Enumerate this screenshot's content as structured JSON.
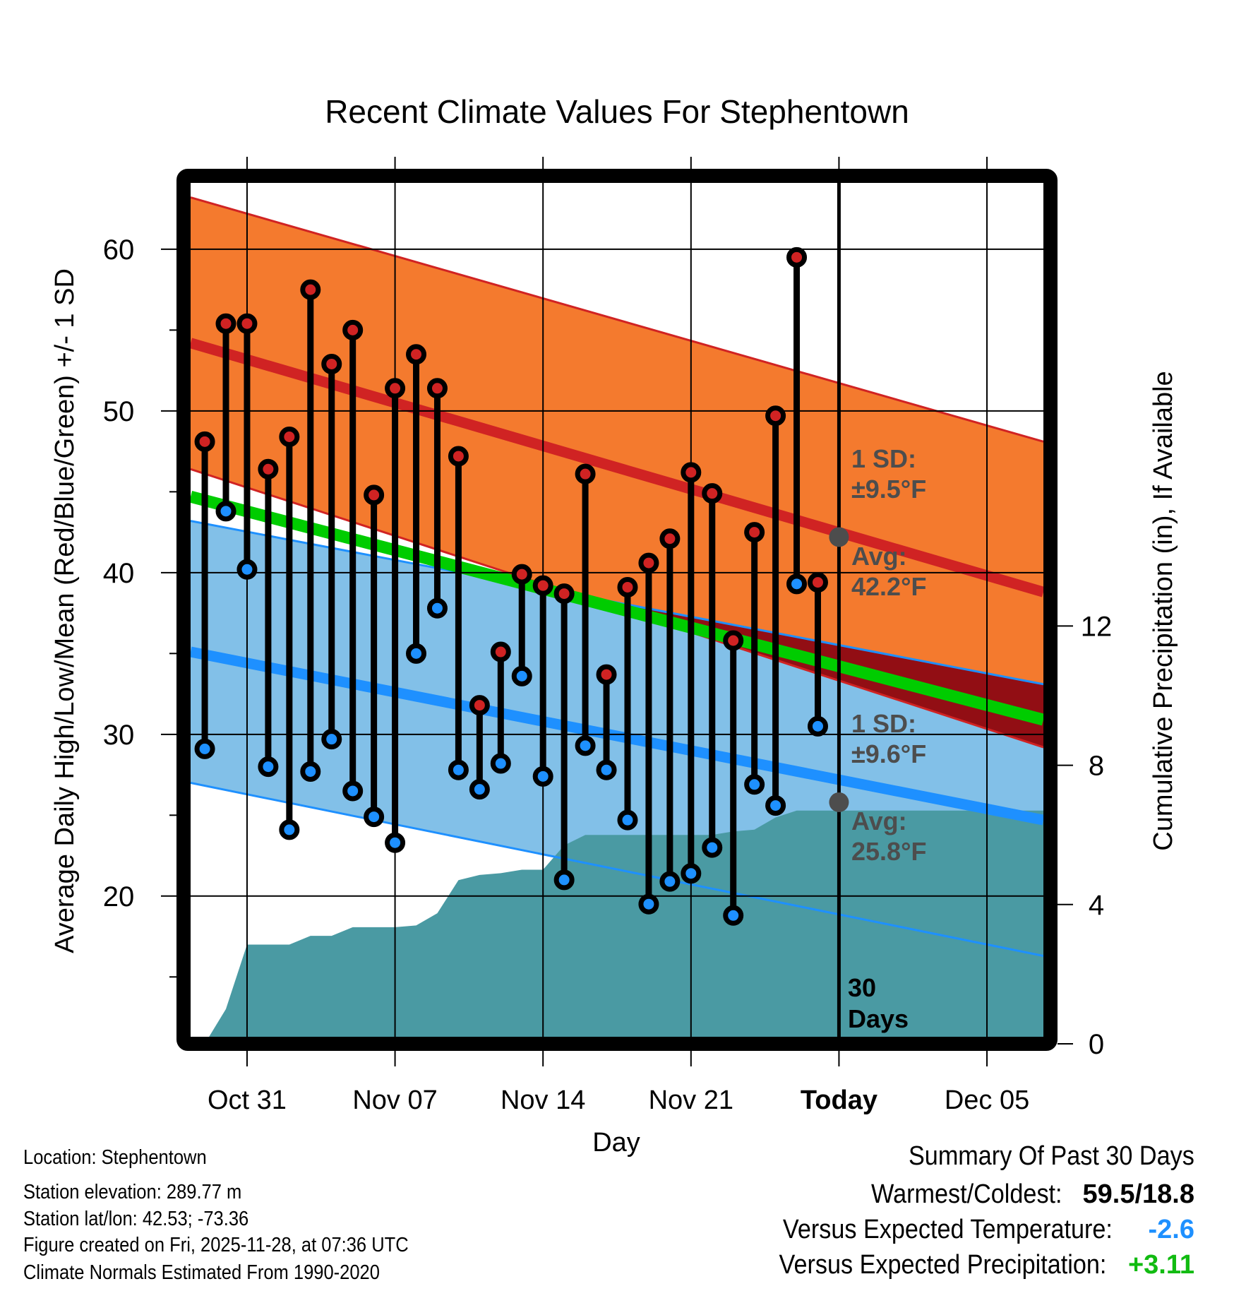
{
  "chart_data": {
    "type": "line",
    "title": "Recent Climate Values For Stephentown",
    "xlabel": "Day",
    "ylabel": "Average Daily High/Low/Mean (Red/Blue/Green) +/- 1 SD",
    "y2label": "Cumulative Precipitation (in), If Available",
    "ylim": [
      11.3,
      64.1
    ],
    "y2lim": [
      0,
      24
    ],
    "yticks": [
      20,
      30,
      40,
      50,
      60
    ],
    "yminor_ticks": [
      15,
      25,
      35,
      45,
      55
    ],
    "y2ticks": [
      0,
      4,
      8,
      12
    ],
    "xticks": [
      {
        "label": "Oct 31",
        "day_offset": 0,
        "bold": false
      },
      {
        "label": "Nov 07",
        "day_offset": 7,
        "bold": false
      },
      {
        "label": "Nov 14",
        "day_offset": 14,
        "bold": false
      },
      {
        "label": "Nov 21",
        "day_offset": 21,
        "bold": false
      },
      {
        "label": "Today",
        "day_offset": 28,
        "bold": true
      },
      {
        "label": "Dec 05",
        "day_offset": 35,
        "bold": false
      }
    ],
    "x_range_day_offsets": [
      -2.67,
      37.67
    ],
    "grid": true,
    "days": [
      "Oct 29",
      "Oct 30",
      "Oct 31",
      "Nov 01",
      "Nov 02",
      "Nov 03",
      "Nov 04",
      "Nov 05",
      "Nov 06",
      "Nov 07",
      "Nov 08",
      "Nov 09",
      "Nov 10",
      "Nov 11",
      "Nov 12",
      "Nov 13",
      "Nov 14",
      "Nov 15",
      "Nov 16",
      "Nov 17",
      "Nov 18",
      "Nov 19",
      "Nov 20",
      "Nov 21",
      "Nov 22",
      "Nov 23",
      "Nov 24",
      "Nov 25",
      "Nov 26",
      "Nov 27"
    ],
    "day_offsets": [
      -2,
      -1,
      0,
      1,
      2,
      3,
      4,
      5,
      6,
      7,
      8,
      9,
      10,
      11,
      12,
      13,
      14,
      15,
      16,
      17,
      18,
      19,
      20,
      21,
      22,
      23,
      24,
      25,
      26,
      27
    ],
    "series": [
      {
        "name": "Daily High (°F)",
        "color": "#d02323",
        "values": [
          48.1,
          55.4,
          55.4,
          46.4,
          48.4,
          57.5,
          52.9,
          55.0,
          44.8,
          51.4,
          53.5,
          51.4,
          47.2,
          31.8,
          35.1,
          39.9,
          39.2,
          38.7,
          46.1,
          33.7,
          39.1,
          40.6,
          42.1,
          46.2,
          44.9,
          35.8,
          42.5,
          49.7,
          59.5,
          39.4
        ]
      },
      {
        "name": "Daily Low (°F)",
        "color": "#1e90ff",
        "values": [
          29.1,
          43.8,
          40.2,
          28.0,
          24.1,
          27.7,
          29.7,
          26.5,
          24.9,
          23.3,
          35.0,
          37.8,
          27.8,
          26.6,
          28.2,
          33.6,
          27.4,
          21.0,
          29.3,
          27.8,
          24.7,
          19.5,
          20.9,
          21.4,
          23.0,
          18.8,
          26.9,
          25.6,
          39.3,
          30.5
        ]
      },
      {
        "name": "Cumulative Precipitation (in)",
        "color": "#4a9aa3",
        "axis": "right",
        "values": [
          0.0,
          1.0,
          2.85,
          2.85,
          2.85,
          3.1,
          3.1,
          3.35,
          3.35,
          3.35,
          3.4,
          3.75,
          4.7,
          4.85,
          4.9,
          5.0,
          5.0,
          5.7,
          6.0,
          6.0,
          6.0,
          6.0,
          6.0,
          6.0,
          6.0,
          6.1,
          6.15,
          6.5,
          6.7,
          6.7
        ]
      }
    ],
    "normals": {
      "x_day_offsets": [
        -2.67,
        37.67
      ],
      "high_plus_sd": [
        63.2,
        48.1
      ],
      "high_mean": [
        54.2,
        38.8
      ],
      "high_minus_sd": [
        46.4,
        29.2
      ],
      "mean": [
        44.7,
        30.9
      ],
      "low_plus_sd": [
        43.2,
        33.1
      ],
      "low_mean": [
        35.1,
        24.7
      ],
      "low_minus_sd": [
        27.0,
        16.3
      ],
      "colors": {
        "high_band": "#f47a2e",
        "high_line": "#d02323",
        "mean_line": "#00cc00",
        "low_band": "#82c0e8",
        "low_line": "#1e90ff",
        "overlap": "#920e14",
        "precip": "#4a9aa3"
      }
    },
    "annotations": {
      "high_sd_label_1": "1 SD:",
      "high_sd_label_2": "±9.5°F",
      "high_avg_label_1": "Avg:",
      "high_avg_label_2": "42.2°F",
      "high_avg_today": 42.2,
      "low_sd_label_1": "1 SD:",
      "low_sd_label_2": "±9.6°F",
      "low_avg_label_1": "Avg:",
      "low_avg_label_2": "25.8°F",
      "low_avg_today": 25.8,
      "window_label_1": "30",
      "window_label_2": "Days"
    }
  },
  "footer": {
    "location": "Location: Stephentown",
    "elevation": "Station elevation: 289.77 m",
    "latlon": "Station lat/lon: 42.53; -73.36",
    "created": "Figure created on Fri, 2025-11-28, at 07:36 UTC",
    "normals": "Climate Normals Estimated From 1990-2020"
  },
  "summary": {
    "title": "Summary Of Past 30 Days",
    "warmest_coldest_label": "Warmest/Coldest:",
    "warmest_coldest_value": "59.5/18.8",
    "temp_label": "Versus Expected Temperature:",
    "temp_value": "-2.6",
    "temp_color": "#1e90ff",
    "precip_label": "Versus Expected Precipitation:",
    "precip_value": "+3.11",
    "precip_color": "#11bb11"
  }
}
